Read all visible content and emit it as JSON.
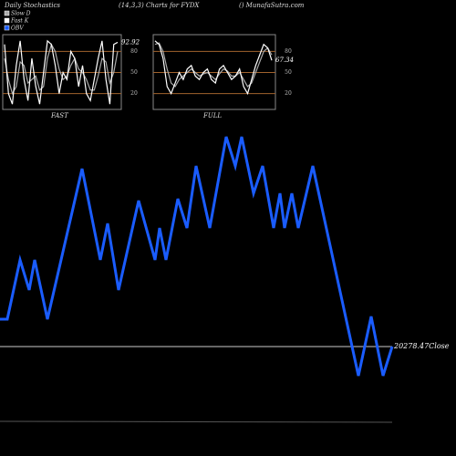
{
  "header": {
    "title": "Daily Stochastics",
    "subtitle": "(14,3,3) Charts for FYDX",
    "source": "() MunafaSutra.com"
  },
  "chart_data": [
    {
      "type": "line",
      "label": "FAST",
      "ylim": [
        0,
        100
      ],
      "yticks": [
        20,
        50,
        80
      ],
      "grid_color": "#a0622d",
      "series": [
        {
          "name": "Slow D",
          "color": "#aaaaaa",
          "values": [
            70,
            40,
            20,
            30,
            65,
            60,
            35,
            40,
            45,
            25,
            30,
            70,
            90,
            80,
            55,
            40,
            45,
            60,
            70,
            55,
            50,
            40,
            25,
            25,
            45,
            70,
            65,
            35,
            50,
            80
          ]
        },
        {
          "name": "Fast K",
          "color": "#ffffff",
          "values": [
            90,
            20,
            5,
            60,
            95,
            40,
            10,
            70,
            30,
            5,
            50,
            95,
            90,
            60,
            20,
            50,
            40,
            80,
            70,
            30,
            60,
            20,
            10,
            40,
            70,
            95,
            40,
            5,
            90,
            92.92
          ]
        }
      ]
    },
    {
      "type": "line",
      "label": "FULL",
      "ylim": [
        0,
        100
      ],
      "yticks": [
        20,
        50,
        80
      ],
      "grid_color": "#a0622d",
      "series": [
        {
          "name": "Slow D",
          "color": "#aaaaaa",
          "values": [
            90,
            92,
            80,
            55,
            35,
            30,
            40,
            45,
            50,
            55,
            50,
            45,
            48,
            50,
            45,
            40,
            48,
            55,
            52,
            45,
            45,
            50,
            40,
            30,
            35,
            50,
            65,
            80,
            85,
            75
          ]
        },
        {
          "name": "Fast K",
          "color": "#ffffff",
          "values": [
            95,
            90,
            70,
            30,
            20,
            35,
            50,
            40,
            55,
            60,
            45,
            40,
            50,
            55,
            40,
            35,
            55,
            60,
            50,
            40,
            45,
            55,
            30,
            20,
            40,
            60,
            75,
            90,
            85,
            67.34
          ]
        }
      ]
    },
    {
      "type": "line",
      "xlim": [
        0,
        500
      ],
      "ylim": [
        0,
        500
      ],
      "annotation": "20278.47Close",
      "x": [
        0,
        8,
        22,
        32,
        38,
        52,
        90,
        110,
        118,
        130,
        152,
        170,
        175,
        182,
        195,
        205,
        215,
        230,
        248,
        258,
        265,
        278,
        288,
        300,
        307,
        312,
        320,
        327,
        343,
        393,
        407,
        420,
        430
      ],
      "series": [
        {
          "name": "OBV",
          "color": "#1a5cff",
          "values": [
            150,
            150,
            215,
            182,
            215,
            150,
            315,
            215,
            255,
            182,
            280,
            215,
            250,
            215,
            282,
            250,
            318,
            250,
            350,
            318,
            350,
            288,
            318,
            250,
            288,
            250,
            288,
            250,
            318,
            88,
            153,
            88,
            120
          ]
        }
      ]
    }
  ]
}
